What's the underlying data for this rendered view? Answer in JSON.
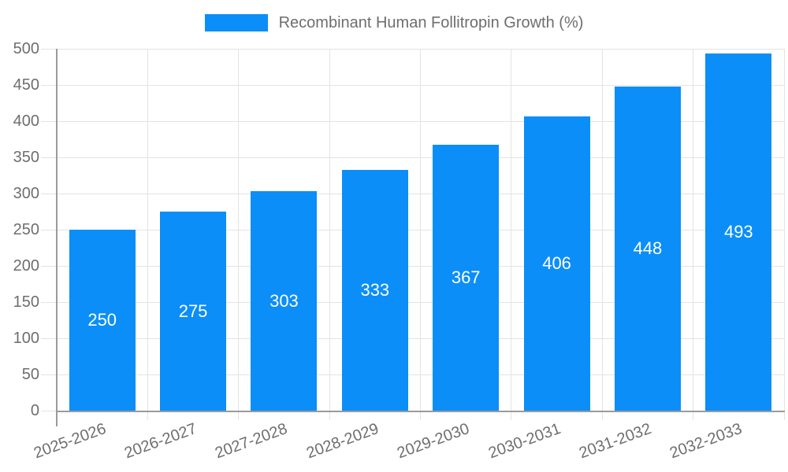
{
  "chart_data": {
    "type": "bar",
    "title": "Recombinant Human Follitropin Growth (%)",
    "legend": {
      "label": "Recombinant Human Follitropin Growth (%)",
      "position": "top-center"
    },
    "categories": [
      "2025-2026",
      "2026-2027",
      "2027-2028",
      "2028-2029",
      "2029-2030",
      "2030-2031",
      "2031-2032",
      "2032-2033"
    ],
    "values": [
      250,
      275,
      303,
      333,
      367,
      406,
      448,
      493
    ],
    "xlabel": "",
    "ylabel": "",
    "ylim": [
      0,
      500
    ],
    "yticks": [
      0,
      50,
      100,
      150,
      200,
      250,
      300,
      350,
      400,
      450,
      500
    ],
    "grid": true,
    "x_tick_rotation_deg": -20,
    "value_labels_inside_bars": true,
    "colors": {
      "bar": "#0b8ef8",
      "grid": "#e3e3e3",
      "axis": "#9a9a9a",
      "tick_label": "#6e6e6e",
      "legend_label": "#6e6e6e",
      "value_label": "#ffffff",
      "background": "#ffffff"
    }
  }
}
